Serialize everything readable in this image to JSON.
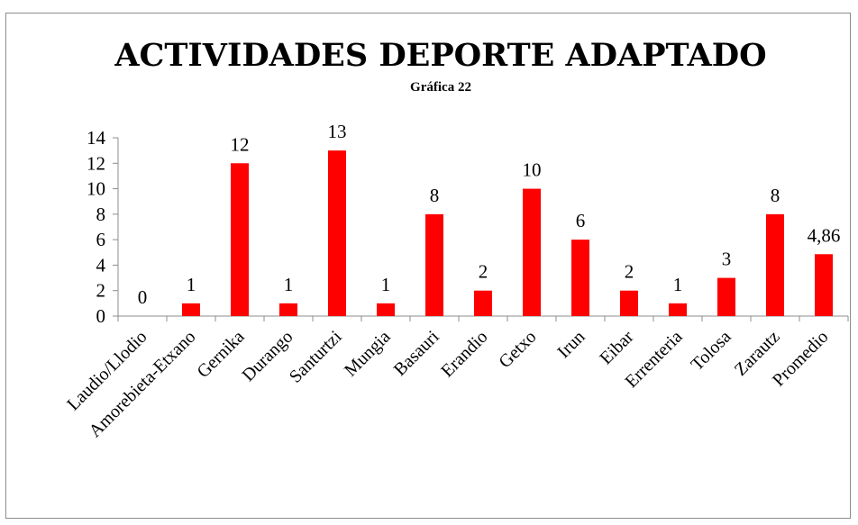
{
  "chart_data": {
    "type": "bar",
    "title": "ACTIVIDADES DEPORTE ADAPTADO",
    "subtitle": "Gráfica 22",
    "xlabel": "",
    "ylabel": "",
    "ylim": [
      0,
      14
    ],
    "yticks": [
      0,
      2,
      4,
      6,
      8,
      10,
      12,
      14
    ],
    "grid": false,
    "legend": "none",
    "bar_color": "#ff0000",
    "categories": [
      "Laudio/Llodio",
      "Amorebieta-Etxano",
      "Gernika",
      "Durango",
      "Santurtzi",
      "Mungia",
      "Basauri",
      "Erandio",
      "Getxo",
      "Irun",
      "Eibar",
      "Errenteria",
      "Tolosa",
      "Zarautz",
      "Promedio"
    ],
    "values": [
      0,
      1,
      12,
      1,
      13,
      1,
      8,
      2,
      10,
      6,
      2,
      1,
      3,
      8,
      4.86
    ],
    "data_labels": [
      "0",
      "1",
      "12",
      "1",
      "13",
      "1",
      "8",
      "2",
      "10",
      "6",
      "2",
      "1",
      "3",
      "8",
      "4,86"
    ]
  }
}
